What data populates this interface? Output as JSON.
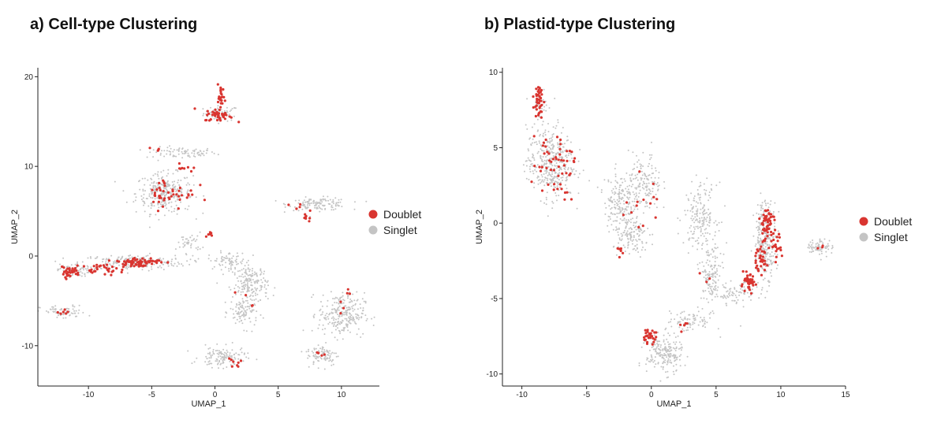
{
  "colors": {
    "doublet": "#d93530",
    "singlet": "#c4c4c4",
    "axis": "#222222"
  },
  "chart_data": [
    {
      "type": "scatter",
      "title": "a) Cell-type Clustering",
      "xlabel": "UMAP_1",
      "ylabel": "UMAP_2",
      "xlim": [
        -14,
        13
      ],
      "ylim": [
        -14.5,
        21
      ],
      "xticks": [
        -10,
        -5,
        0,
        5,
        10
      ],
      "yticks": [
        -10,
        0,
        10,
        20
      ],
      "legend": {
        "placement": "right",
        "entries": [
          "Doublet",
          "Singlet"
        ]
      },
      "series": [
        {
          "name": "Singlet",
          "clusters": [
            {
              "cx": 0.5,
              "cy": 15.9,
              "sx": 1.0,
              "sy": 0.6,
              "n": 60
            },
            {
              "cx": -2.7,
              "cy": 11.5,
              "sx": 2.0,
              "sy": 0.45,
              "n": 80
            },
            {
              "cx": -4.0,
              "cy": 7.0,
              "sx": 1.6,
              "sy": 1.6,
              "n": 280
            },
            {
              "cx": 8.2,
              "cy": 5.8,
              "sx": 1.7,
              "sy": 0.5,
              "n": 130
            },
            {
              "cx": -6.5,
              "cy": -0.7,
              "sx": 3.0,
              "sy": 0.6,
              "n": 220
            },
            {
              "cx": -11.2,
              "cy": -1.6,
              "sx": 0.9,
              "sy": 0.5,
              "n": 60
            },
            {
              "cx": -12.0,
              "cy": -6.3,
              "sx": 1.3,
              "sy": 0.55,
              "n": 70
            },
            {
              "cx": -2.0,
              "cy": 1.5,
              "sx": 0.7,
              "sy": 0.8,
              "n": 40
            },
            {
              "cx": 1.0,
              "cy": -0.5,
              "sx": 1.1,
              "sy": 0.7,
              "n": 70
            },
            {
              "cx": 2.8,
              "cy": -3.2,
              "sx": 1.0,
              "sy": 1.6,
              "n": 190
            },
            {
              "cx": 2.3,
              "cy": -6.3,
              "sx": 0.8,
              "sy": 1.2,
              "n": 90
            },
            {
              "cx": 0.6,
              "cy": -11.3,
              "sx": 1.3,
              "sy": 0.8,
              "n": 130
            },
            {
              "cx": 10.0,
              "cy": -6.5,
              "sx": 1.3,
              "sy": 1.7,
              "n": 250
            },
            {
              "cx": 8.5,
              "cy": -11.0,
              "sx": 0.9,
              "sy": 0.9,
              "n": 90
            }
          ]
        },
        {
          "name": "Doublet",
          "clusters": [
            {
              "cx": 0.5,
              "cy": 17.5,
              "sx": 0.2,
              "sy": 1.2,
              "n": 25
            },
            {
              "cx": 0.3,
              "cy": 15.7,
              "sx": 0.8,
              "sy": 0.5,
              "n": 40
            },
            {
              "cx": -3.5,
              "cy": 7.0,
              "sx": 1.4,
              "sy": 1.3,
              "n": 45
            },
            {
              "cx": -2.6,
              "cy": 9.8,
              "sx": 0.6,
              "sy": 0.3,
              "n": 8
            },
            {
              "cx": -4.5,
              "cy": 12.0,
              "sx": 0.4,
              "sy": 0.2,
              "n": 4
            },
            {
              "cx": -11.5,
              "cy": -1.8,
              "sx": 0.6,
              "sy": 0.4,
              "n": 30
            },
            {
              "cx": -6.3,
              "cy": -0.7,
              "sx": 1.4,
              "sy": 0.4,
              "n": 70
            },
            {
              "cx": -9.0,
              "cy": -1.5,
              "sx": 1.1,
              "sy": 0.4,
              "n": 25
            },
            {
              "cx": 7.3,
              "cy": 4.3,
              "sx": 0.2,
              "sy": 0.4,
              "n": 8
            },
            {
              "cx": 6.5,
              "cy": 5.5,
              "sx": 1.0,
              "sy": 0.3,
              "n": 4
            },
            {
              "cx": -0.3,
              "cy": 2.4,
              "sx": 0.3,
              "sy": 0.3,
              "n": 6
            },
            {
              "cx": 1.4,
              "cy": -11.8,
              "sx": 0.5,
              "sy": 0.5,
              "n": 8
            },
            {
              "cx": -12.0,
              "cy": -6.3,
              "sx": 0.6,
              "sy": 0.3,
              "n": 6
            },
            {
              "cx": 10.5,
              "cy": -5.0,
              "sx": 0.4,
              "sy": 1.2,
              "n": 6
            },
            {
              "cx": 8.3,
              "cy": -11.0,
              "sx": 0.3,
              "sy": 0.6,
              "n": 4
            },
            {
              "cx": 2.8,
              "cy": -4.5,
              "sx": 0.7,
              "sy": 2.0,
              "n": 4
            }
          ]
        }
      ]
    },
    {
      "type": "scatter",
      "title": "b) Plastid-type Clustering",
      "xlabel": "UMAP_1",
      "ylabel": "UMAP_2",
      "xlim": [
        -11.5,
        15
      ],
      "ylim": [
        -10.8,
        10.3
      ],
      "xticks": [
        -10,
        -5,
        0,
        5,
        10,
        15
      ],
      "yticks": [
        -10,
        -5,
        0,
        5,
        10
      ],
      "legend": {
        "placement": "right",
        "entries": [
          "Doublet",
          "Singlet"
        ]
      },
      "series": [
        {
          "name": "Singlet",
          "clusters": [
            {
              "cx": -7.8,
              "cy": 4.0,
              "sx": 1.3,
              "sy": 1.7,
              "n": 380
            },
            {
              "cx": -8.6,
              "cy": 7.8,
              "sx": 0.4,
              "sy": 0.9,
              "n": 40
            },
            {
              "cx": -2.5,
              "cy": 1.5,
              "sx": 0.8,
              "sy": 1.4,
              "n": 170
            },
            {
              "cx": -0.5,
              "cy": 2.5,
              "sx": 0.9,
              "sy": 1.5,
              "n": 160
            },
            {
              "cx": -1.5,
              "cy": -1.0,
              "sx": 1.0,
              "sy": 0.9,
              "n": 120
            },
            {
              "cx": 3.8,
              "cy": 0.5,
              "sx": 0.9,
              "sy": 1.5,
              "n": 180
            },
            {
              "cx": 4.6,
              "cy": -3.5,
              "sx": 0.6,
              "sy": 1.5,
              "n": 130
            },
            {
              "cx": 3.0,
              "cy": -6.5,
              "sx": 1.3,
              "sy": 0.5,
              "n": 80
            },
            {
              "cx": 1.0,
              "cy": -8.7,
              "sx": 1.0,
              "sy": 0.9,
              "n": 200
            },
            {
              "cx": 6.6,
              "cy": -4.7,
              "sx": 1.3,
              "sy": 0.5,
              "n": 90
            },
            {
              "cx": 8.8,
              "cy": -1.0,
              "sx": 0.6,
              "sy": 1.8,
              "n": 250
            },
            {
              "cx": 13.0,
              "cy": -1.6,
              "sx": 0.7,
              "sy": 0.4,
              "n": 70
            }
          ]
        },
        {
          "name": "Doublet",
          "clusters": [
            {
              "cx": -8.7,
              "cy": 8.2,
              "sx": 0.25,
              "sy": 0.9,
              "n": 40
            },
            {
              "cx": -7.5,
              "cy": 4.0,
              "sx": 1.2,
              "sy": 1.6,
              "n": 55
            },
            {
              "cx": 8.9,
              "cy": 0.0,
              "sx": 0.4,
              "sy": 0.8,
              "n": 50
            },
            {
              "cx": 8.4,
              "cy": -2.3,
              "sx": 0.4,
              "sy": 0.7,
              "n": 35
            },
            {
              "cx": 7.5,
              "cy": -4.0,
              "sx": 0.4,
              "sy": 0.4,
              "n": 40
            },
            {
              "cx": 9.5,
              "cy": -1.5,
              "sx": 0.4,
              "sy": 0.8,
              "n": 25
            },
            {
              "cx": -0.2,
              "cy": -7.5,
              "sx": 0.4,
              "sy": 0.3,
              "n": 30
            },
            {
              "cx": -1.0,
              "cy": 0.5,
              "sx": 1.2,
              "sy": 2.0,
              "n": 14
            },
            {
              "cx": -2.2,
              "cy": -1.8,
              "sx": 0.4,
              "sy": 0.4,
              "n": 6
            },
            {
              "cx": 2.5,
              "cy": -6.8,
              "sx": 0.6,
              "sy": 0.3,
              "n": 5
            },
            {
              "cx": 13.0,
              "cy": -1.5,
              "sx": 0.4,
              "sy": 0.3,
              "n": 3
            },
            {
              "cx": 4.5,
              "cy": -3.5,
              "sx": 0.5,
              "sy": 1.0,
              "n": 3
            }
          ]
        }
      ]
    }
  ]
}
